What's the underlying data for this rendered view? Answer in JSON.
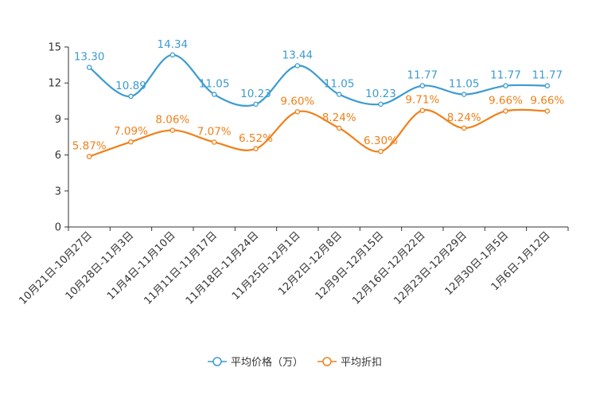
{
  "chart_data": {
    "type": "line",
    "title": "",
    "xlabel": "",
    "ylabel": "",
    "ylim": [
      0,
      15
    ],
    "yticks": [
      0,
      3,
      6,
      9,
      12,
      15
    ],
    "grid": false,
    "legend_position": "bottom",
    "categories": [
      "10月21日-10月27日",
      "10月28日-11月3日",
      "11月4日-11月10日",
      "11月11日-11月17日",
      "11月18日-11月24日",
      "11月25日-12月1日",
      "12月2日-12月8日",
      "12月9日-12月15日",
      "12月16日-12月22日",
      "12月23日-12月29日",
      "12月30日-1月5日",
      "1月6日-1月12日"
    ],
    "series": [
      {
        "name": "平均价格（万）",
        "color": "#3c9bd0",
        "values": [
          13.3,
          10.89,
          14.34,
          11.05,
          10.23,
          13.44,
          11.05,
          10.23,
          11.77,
          11.05,
          11.77,
          11.77
        ],
        "labels": [
          "13.30",
          "10.89",
          "14.34",
          "11.05",
          "10.23",
          "13.44",
          "11.05",
          "10.23",
          "11.77",
          "11.05",
          "11.77",
          "11.77"
        ]
      },
      {
        "name": "平均折扣",
        "color": "#f08019",
        "values": [
          5.87,
          7.09,
          8.06,
          7.07,
          6.52,
          9.6,
          8.24,
          6.3,
          9.71,
          8.24,
          9.66,
          9.66
        ],
        "labels": [
          "5.87%",
          "7.09%",
          "8.06%",
          "7.07%",
          "6.52%",
          "9.60%",
          "8.24%",
          "6.30%",
          "9.71%",
          "8.24%",
          "9.66%",
          "9.66%"
        ]
      }
    ]
  }
}
